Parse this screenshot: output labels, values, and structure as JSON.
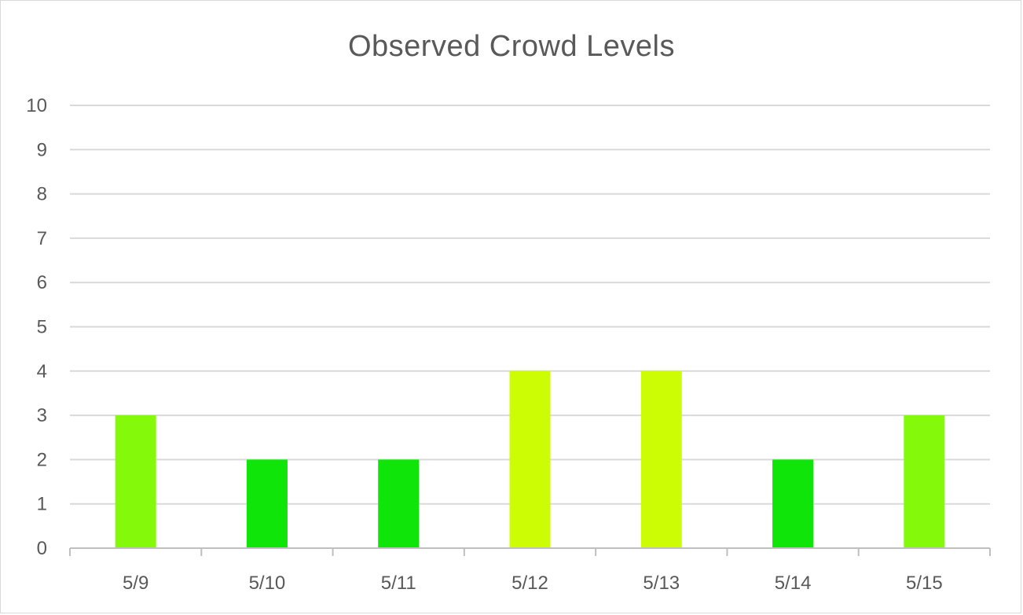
{
  "chart_data": {
    "type": "bar",
    "title": "Observed Crowd Levels",
    "categories": [
      "5/9",
      "5/10",
      "5/11",
      "5/12",
      "5/13",
      "5/14",
      "5/15"
    ],
    "values": [
      3,
      2,
      2,
      4,
      4,
      2,
      3
    ],
    "bar_colors": [
      "#84f90a",
      "#10e50a",
      "#10e50a",
      "#ccfd04",
      "#ccfd04",
      "#10e50a",
      "#84f90a"
    ],
    "ylim": [
      0,
      10
    ],
    "yticks": [
      "0",
      "1",
      "2",
      "3",
      "4",
      "5",
      "6",
      "7",
      "8",
      "9",
      "10"
    ],
    "grid": true,
    "legend": "none",
    "gridline_color": "#d9d9d9",
    "axis_color": "#bfbfbf"
  }
}
